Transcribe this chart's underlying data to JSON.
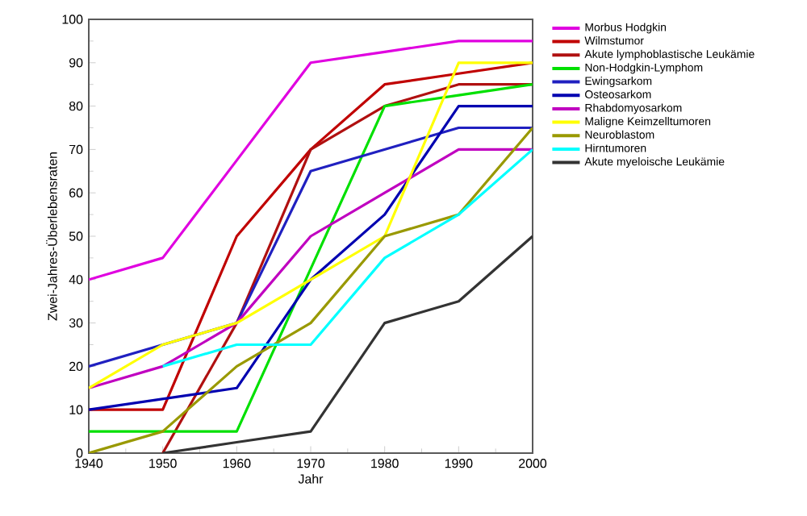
{
  "chart_data": {
    "type": "line",
    "xlabel": "Jahr",
    "ylabel": "Zwei-Jahres-Überlebensraten",
    "x": [
      1940,
      1950,
      1960,
      1970,
      1980,
      1990,
      2000
    ],
    "xlim": [
      1940,
      2000
    ],
    "xticks": [
      1940,
      1950,
      1960,
      1970,
      1980,
      1990,
      2000
    ],
    "ylim": [
      0,
      100
    ],
    "yticks": [
      0,
      10,
      20,
      30,
      40,
      50,
      60,
      70,
      80,
      90,
      100
    ],
    "grid": false,
    "legend": "right",
    "marker": "none",
    "line_style": "solid",
    "series": [
      {
        "name": "Morbus Hodgkin",
        "color": "#e000e0",
        "values": [
          40,
          45,
          67.5,
          90,
          92.5,
          95,
          95
        ]
      },
      {
        "name": "Wilmstumor",
        "color": "#c00000",
        "values": [
          10,
          10,
          50,
          70,
          85,
          87.5,
          90
        ]
      },
      {
        "name": "Akute lymphoblastische Leukämie",
        "color": "#b01010",
        "values": [
          null,
          0,
          30,
          70,
          80,
          85,
          85
        ]
      },
      {
        "name": "Non-Hodgkin-Lymphom",
        "color": "#00e000",
        "values": [
          5,
          5,
          5,
          42.5,
          80,
          82.5,
          85
        ]
      },
      {
        "name": "Ewingsarkom",
        "color": "#2020c0",
        "values": [
          20,
          25,
          30,
          65,
          70,
          75,
          75
        ]
      },
      {
        "name": "Osteosarkom",
        "color": "#0000b0",
        "values": [
          10,
          12.5,
          15,
          40,
          55,
          80,
          80
        ]
      },
      {
        "name": "Rhabdomyosarkom",
        "color": "#c000c0",
        "values": [
          15,
          20,
          30,
          50,
          60,
          70,
          70
        ]
      },
      {
        "name": "Maligne Keimzelltumoren",
        "color": "#ffff00",
        "values": [
          15,
          25,
          30,
          40,
          50,
          90,
          90
        ]
      },
      {
        "name": "Neuroblastom",
        "color": "#999900",
        "values": [
          0,
          5,
          20,
          30,
          50,
          55,
          75
        ]
      },
      {
        "name": "Hirntumoren",
        "color": "#00ffff",
        "values": [
          null,
          20,
          25,
          25,
          45,
          55,
          70
        ]
      },
      {
        "name": "Akute myeloische Leukämie",
        "color": "#333333",
        "values": [
          null,
          0,
          2.5,
          5,
          30,
          35,
          50
        ]
      }
    ]
  }
}
